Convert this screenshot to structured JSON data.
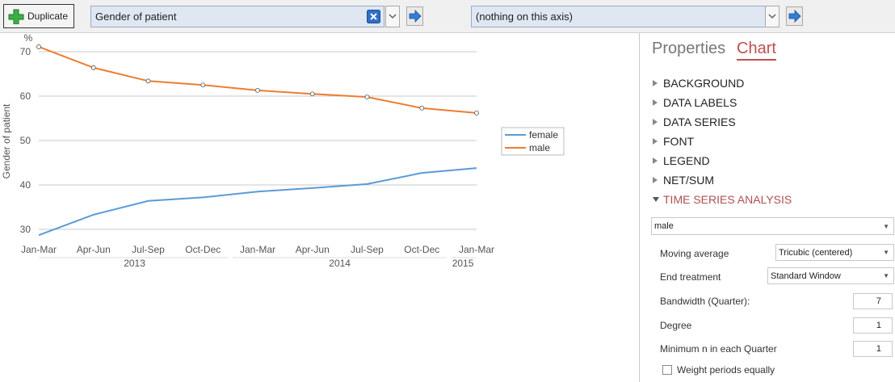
{
  "toolbar": {
    "duplicate": "Duplicate",
    "row_variable": "Gender of patient",
    "column_variable": "(nothing on this axis)"
  },
  "chart_data": {
    "type": "line",
    "y_unit": "%",
    "y_axis_title": "Gender of patient",
    "categories": [
      "Jan-Mar",
      "Apr-Jun",
      "Jul-Sep",
      "Oct-Dec",
      "Jan-Mar",
      "Apr-Jun",
      "Jul-Sep",
      "Oct-Dec",
      "Jan-Mar"
    ],
    "x_groups": [
      {
        "label": "2013",
        "count": 4
      },
      {
        "label": "2014",
        "count": 4
      },
      {
        "label": "2015",
        "count": 1
      }
    ],
    "series": [
      {
        "name": "female",
        "color": "#5b9bd5",
        "markers": false,
        "values": [
          28.7,
          33.3,
          36.4,
          37.2,
          38.5,
          39.3,
          40.2,
          42.7,
          43.8
        ]
      },
      {
        "name": "male",
        "color": "#ed7d31",
        "markers": true,
        "values": [
          71.1,
          66.4,
          63.4,
          62.5,
          61.3,
          60.5,
          59.8,
          57.3,
          56.2
        ]
      }
    ],
    "ylim": [
      28,
      72
    ],
    "yticks": [
      30,
      40,
      50,
      60,
      70
    ],
    "grid": true,
    "legend": "right"
  },
  "panel": {
    "tabs": [
      "Properties",
      "Chart"
    ],
    "sections": [
      "BACKGROUND",
      "DATA LABELS",
      "DATA SERIES",
      "FONT",
      "LEGEND",
      "NET/SUM",
      "TIME SERIES ANALYSIS"
    ],
    "series_select": "male",
    "settings": [
      {
        "label": "Moving average",
        "value": "Tricubic (centered)"
      },
      {
        "label": "End treatment",
        "value": "Standard Window"
      },
      {
        "label": "Bandwidth (Quarter):",
        "value": "7"
      },
      {
        "label": "Degree",
        "value": "1"
      },
      {
        "label": "Minimum n in each Quarter",
        "value": "1"
      }
    ],
    "checkbox": "Weight periods equally"
  }
}
